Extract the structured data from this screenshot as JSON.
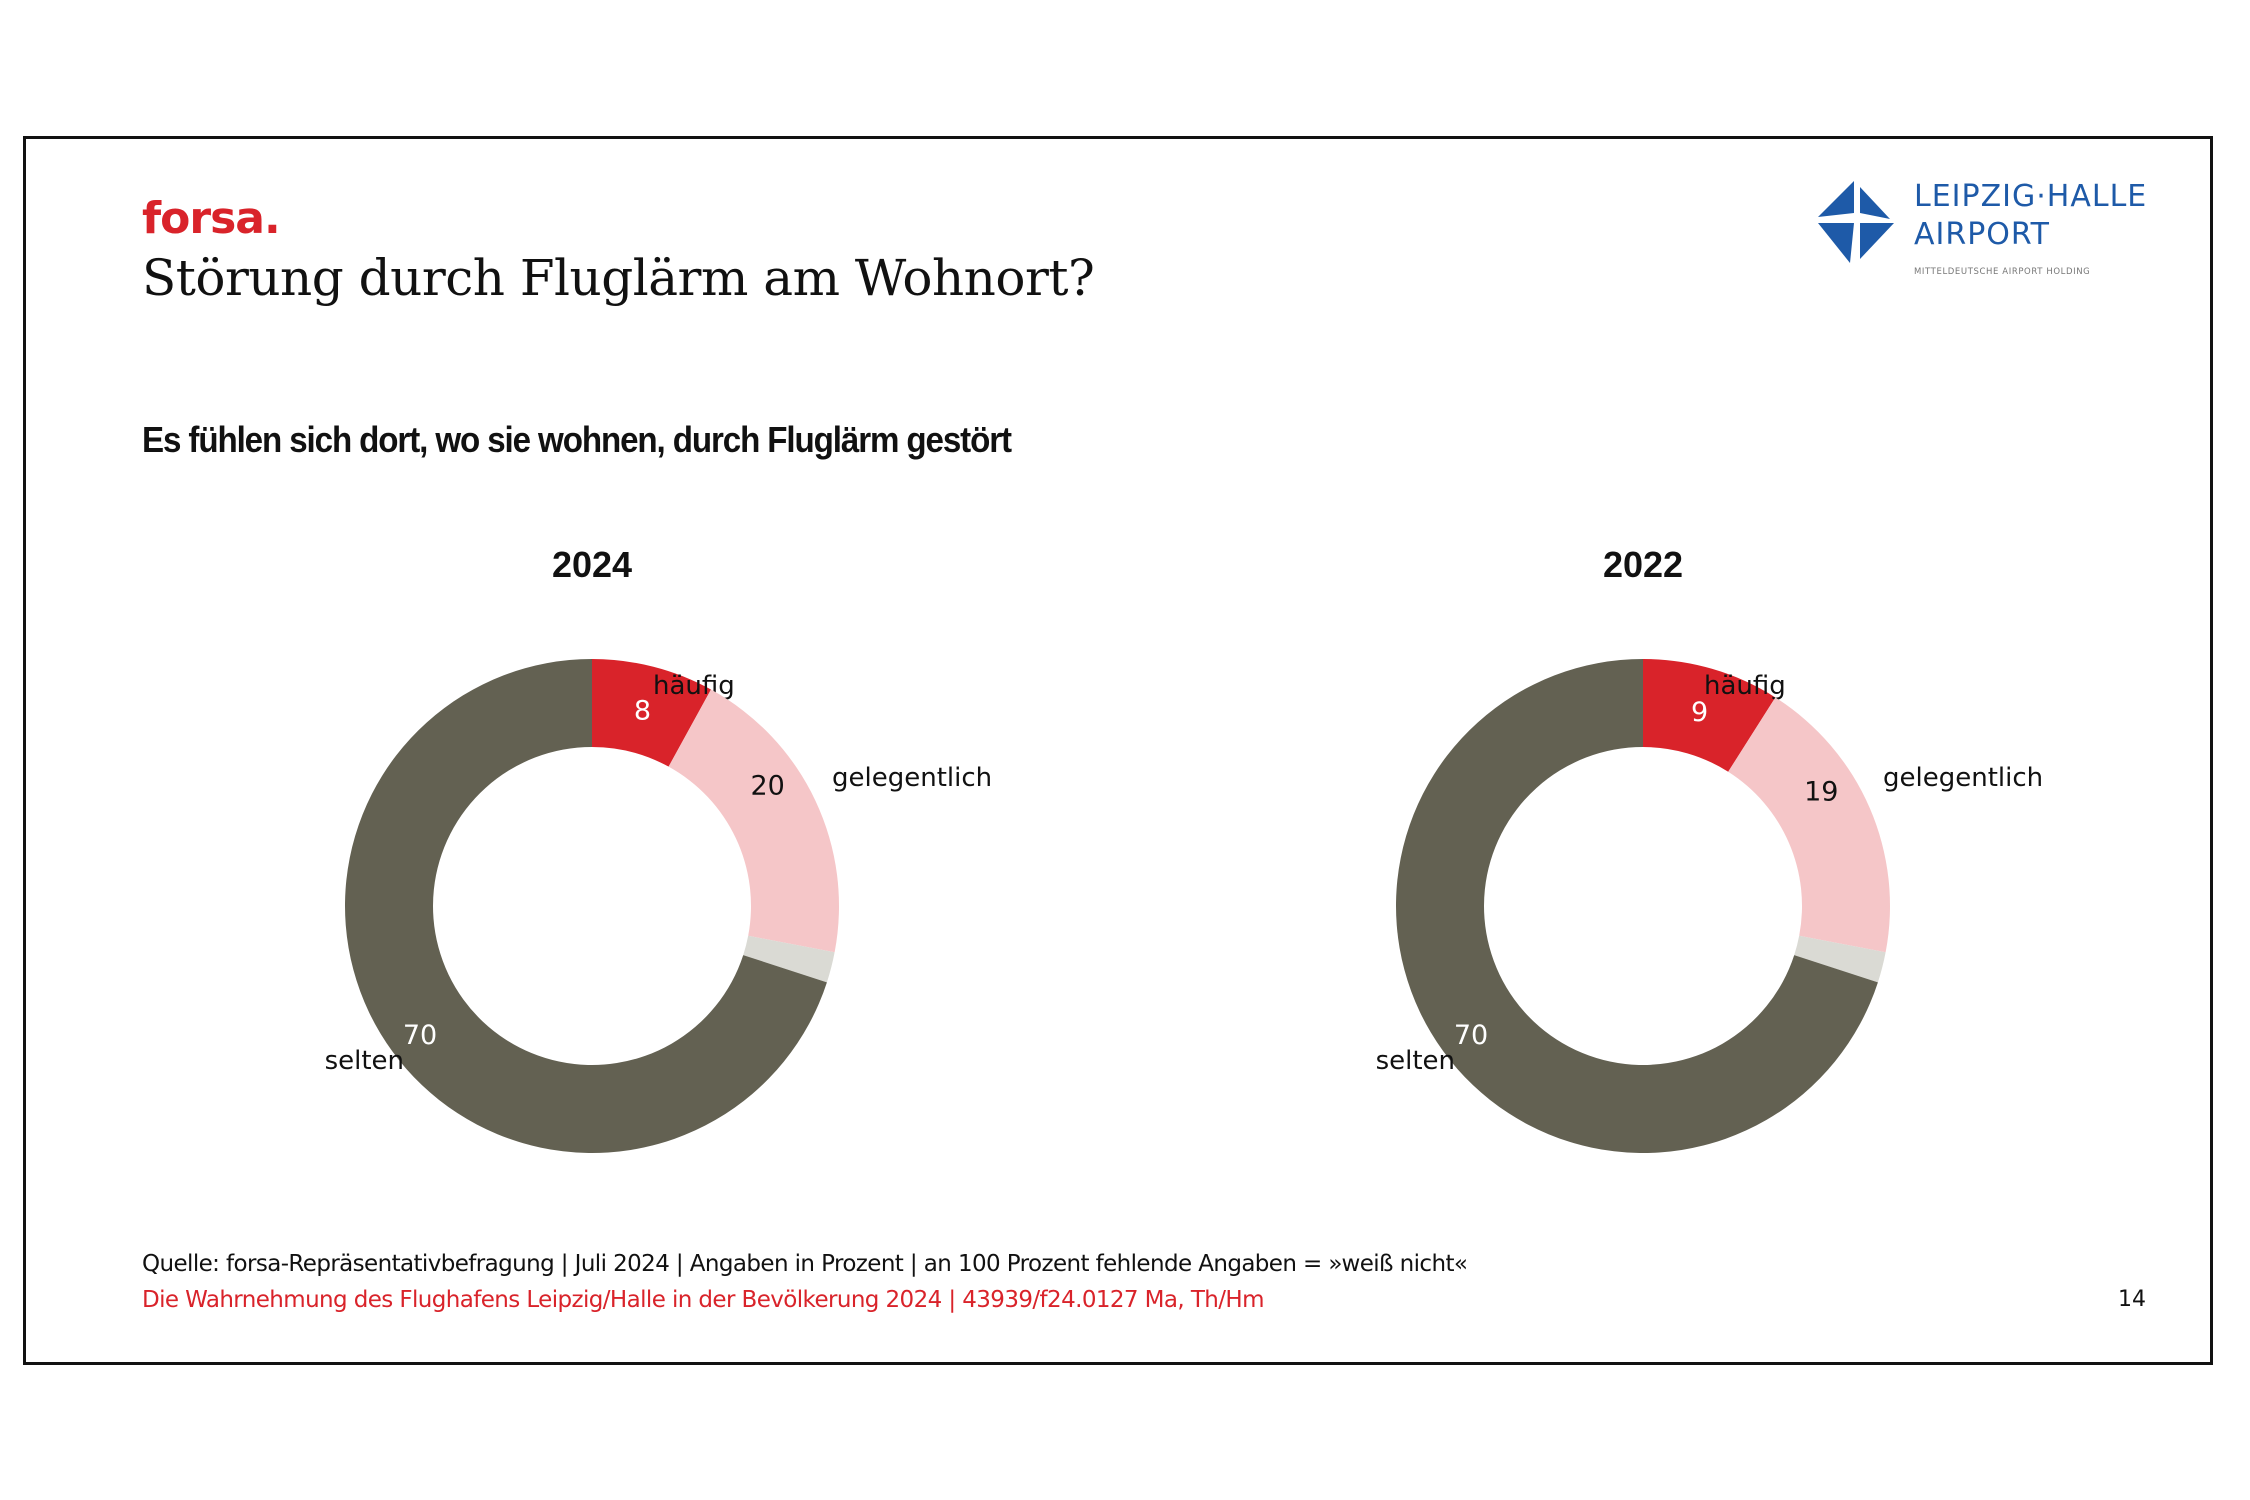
{
  "slide": {
    "brand": "forsa.",
    "title": "Störung durch Fluglärm am Wohnort?",
    "subtitle": "Es fühlen sich dort, wo sie wohnen, durch Fluglärm gestört",
    "logo": {
      "line1": "LEIPZIG·HALLE",
      "line2": "AIRPORT",
      "tagline": "MITTELDEUTSCHE AIRPORT HOLDING",
      "icon": "airport-diamond-logo-icon"
    },
    "footer": {
      "source": "Quelle: forsa-Repräsentativbefragung | Juli 2024 | Angaben in Prozent | an 100 Prozent fehlende Angaben = »weiß nicht«",
      "report": "Die Wahrnehmung des Flughafens Leipzig/Halle in der Bevölkerung 2024 | 43939/f24.0127 Ma, Th/Hm",
      "page_number": "14"
    }
  },
  "colors": {
    "haeufig": "#d9232a",
    "gelegentlich": "#f5c6c8",
    "weiss_nicht": "#dadad4",
    "selten": "#636152",
    "brand_red": "#d9232a",
    "logo_blue": "#1e5aa8"
  },
  "chart_data": [
    {
      "type": "pie",
      "variant": "donut",
      "title": "2024",
      "unit": "Prozent",
      "slices": [
        {
          "key": "haeufig",
          "label": "häufig",
          "value": 8,
          "value_label": "8"
        },
        {
          "key": "gelegentlich",
          "label": "gelegentlich",
          "value": 20,
          "value_label": "20"
        },
        {
          "key": "weiss_nicht",
          "label": "",
          "value": 2,
          "value_label": ""
        },
        {
          "key": "selten",
          "label": "selten",
          "value": 70,
          "value_label": "70"
        }
      ]
    },
    {
      "type": "pie",
      "variant": "donut",
      "title": "2022",
      "unit": "Prozent",
      "slices": [
        {
          "key": "haeufig",
          "label": "häufig",
          "value": 9,
          "value_label": "9"
        },
        {
          "key": "gelegentlich",
          "label": "gelegentlich",
          "value": 19,
          "value_label": "19"
        },
        {
          "key": "weiss_nicht",
          "label": "",
          "value": 2,
          "value_label": ""
        },
        {
          "key": "selten",
          "label": "selten",
          "value": 70,
          "value_label": "70"
        }
      ]
    }
  ]
}
